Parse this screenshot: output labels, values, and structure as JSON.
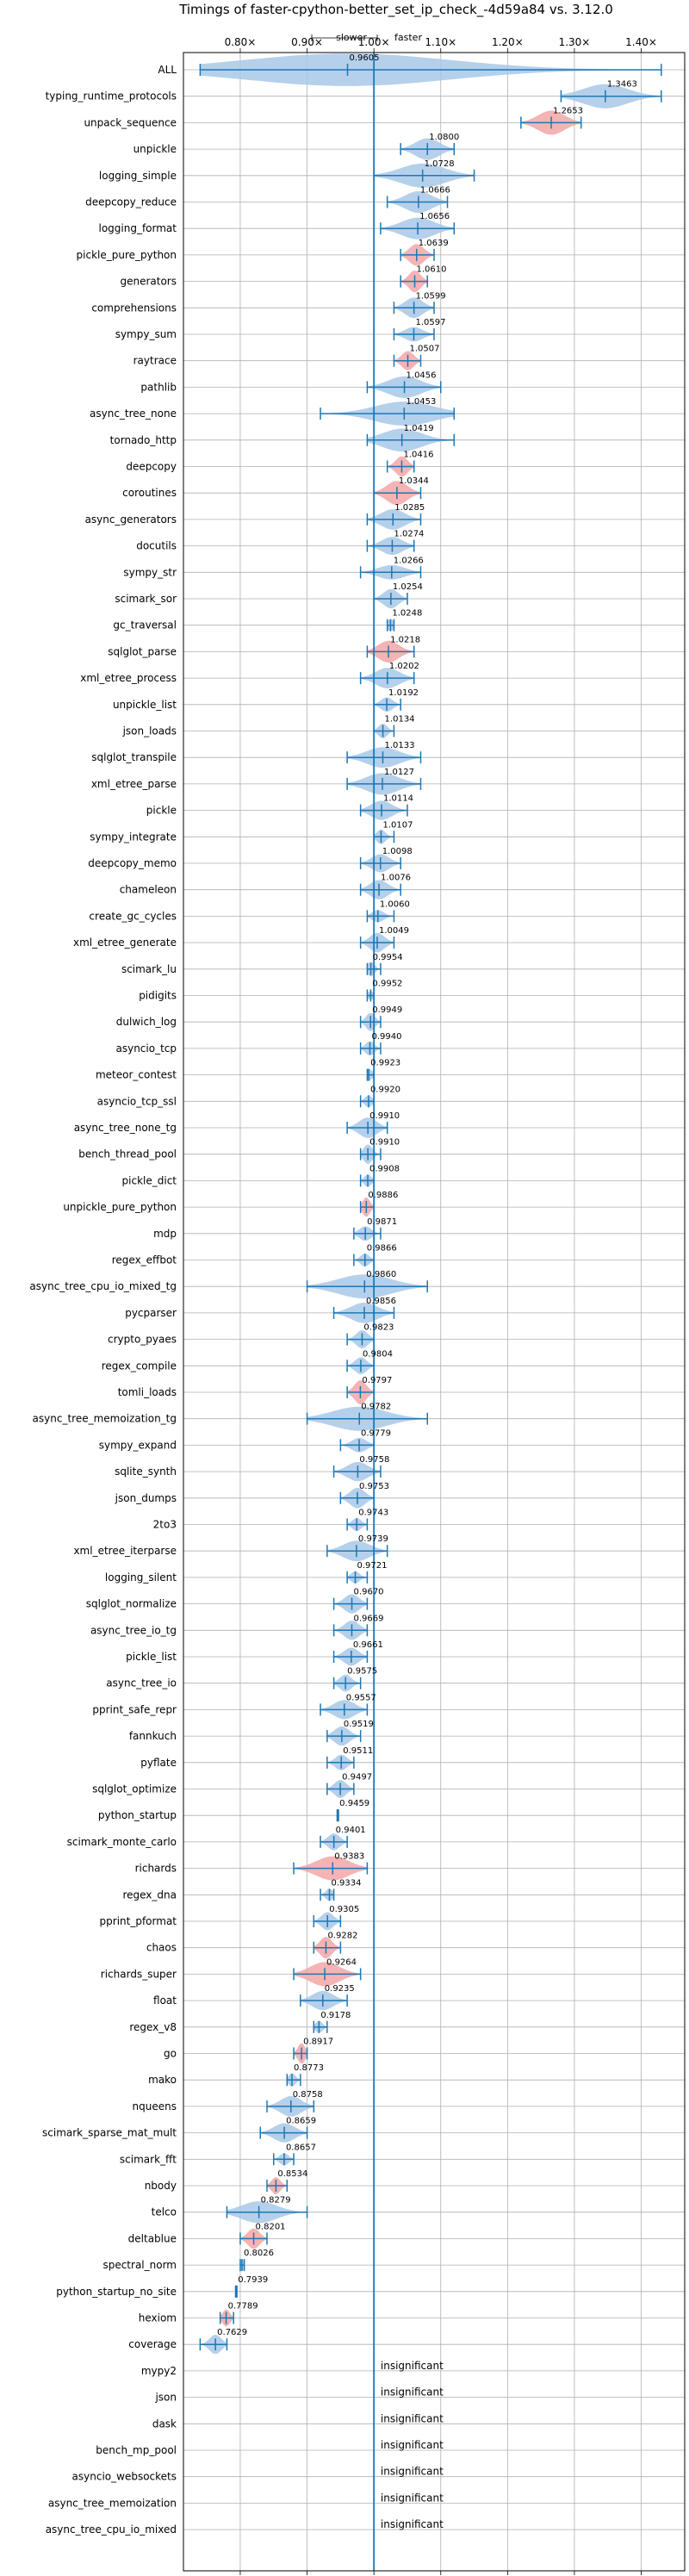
{
  "chart_data": {
    "type": "violin",
    "title": "Timings of faster-cpython-better_set_ip_check_-4d59a84 vs. 3.12.0",
    "xlabel": "",
    "ylabel": "",
    "xlim": [
      0.715,
      1.465
    ],
    "x_ticks": [
      "0.80×",
      "0.90×",
      "1.00×",
      "1.10×",
      "1.20×",
      "1.30×",
      "1.40×"
    ],
    "x_tick_values": [
      0.8,
      0.9,
      1.0,
      1.1,
      1.2,
      1.3,
      1.4
    ],
    "reference_x": 1.0,
    "grid": true,
    "annotation": {
      "slower": "slower",
      "faster": "faster"
    },
    "insignificant_label": "insignificant",
    "colors": {
      "normal": "#a8c8e8",
      "highlight": "#f4a6a6",
      "line": "#1f77b4",
      "grid": "#b0b0b0"
    },
    "benchmarks": [
      {
        "name": "ALL",
        "value": 0.9605,
        "lo": 0.74,
        "hi": 1.43,
        "w": 1.35,
        "hl": false
      },
      {
        "name": "typing_runtime_protocols",
        "value": 1.3463,
        "lo": 1.28,
        "hi": 1.43,
        "w": 1.0,
        "hl": false
      },
      {
        "name": "unpack_sequence",
        "value": 1.2653,
        "lo": 1.22,
        "hi": 1.31,
        "w": 1.0,
        "hl": true
      },
      {
        "name": "unpickle",
        "value": 1.08,
        "lo": 1.04,
        "hi": 1.12,
        "w": 0.9,
        "hl": false
      },
      {
        "name": "logging_simple",
        "value": 1.0728,
        "lo": 1.0,
        "hi": 1.15,
        "w": 1.0,
        "hl": false
      },
      {
        "name": "deepcopy_reduce",
        "value": 1.0666,
        "lo": 1.02,
        "hi": 1.11,
        "w": 0.9,
        "hl": false
      },
      {
        "name": "logging_format",
        "value": 1.0656,
        "lo": 1.01,
        "hi": 1.12,
        "w": 0.9,
        "hl": false
      },
      {
        "name": "pickle_pure_python",
        "value": 1.0639,
        "lo": 1.04,
        "hi": 1.09,
        "w": 0.9,
        "hl": true
      },
      {
        "name": "generators",
        "value": 1.061,
        "lo": 1.04,
        "hi": 1.08,
        "w": 0.9,
        "hl": true
      },
      {
        "name": "comprehensions",
        "value": 1.0599,
        "lo": 1.03,
        "hi": 1.09,
        "w": 0.85,
        "hl": false
      },
      {
        "name": "sympy_sum",
        "value": 1.0597,
        "lo": 1.03,
        "hi": 1.09,
        "w": 0.6,
        "hl": false
      },
      {
        "name": "raytrace",
        "value": 1.0507,
        "lo": 1.03,
        "hi": 1.07,
        "w": 0.8,
        "hl": true
      },
      {
        "name": "pathlib",
        "value": 1.0456,
        "lo": 0.99,
        "hi": 1.1,
        "w": 0.9,
        "hl": false
      },
      {
        "name": "async_tree_none",
        "value": 1.0453,
        "lo": 0.92,
        "hi": 1.12,
        "w": 1.0,
        "hl": false
      },
      {
        "name": "tornado_http",
        "value": 1.0419,
        "lo": 0.99,
        "hi": 1.12,
        "w": 0.95,
        "hl": false
      },
      {
        "name": "deepcopy",
        "value": 1.0416,
        "lo": 1.02,
        "hi": 1.06,
        "w": 0.85,
        "hl": true
      },
      {
        "name": "coroutines",
        "value": 1.0344,
        "lo": 1.0,
        "hi": 1.07,
        "w": 1.0,
        "hl": true
      },
      {
        "name": "async_generators",
        "value": 1.0285,
        "lo": 0.99,
        "hi": 1.07,
        "w": 0.85,
        "hl": false
      },
      {
        "name": "docutils",
        "value": 1.0274,
        "lo": 0.99,
        "hi": 1.06,
        "w": 0.75,
        "hl": false
      },
      {
        "name": "sympy_str",
        "value": 1.0266,
        "lo": 0.98,
        "hi": 1.07,
        "w": 0.6,
        "hl": false
      },
      {
        "name": "scimark_sor",
        "value": 1.0254,
        "lo": 1.0,
        "hi": 1.05,
        "w": 0.8,
        "hl": false
      },
      {
        "name": "gc_traversal",
        "value": 1.0248,
        "lo": 1.02,
        "hi": 1.03,
        "w": 0.5,
        "hl": false
      },
      {
        "name": "sqlglot_parse",
        "value": 1.0218,
        "lo": 0.99,
        "hi": 1.06,
        "w": 0.9,
        "hl": true
      },
      {
        "name": "xml_etree_process",
        "value": 1.0202,
        "lo": 0.98,
        "hi": 1.06,
        "w": 0.85,
        "hl": false
      },
      {
        "name": "unpickle_list",
        "value": 1.0192,
        "lo": 1.0,
        "hi": 1.04,
        "w": 0.6,
        "hl": false
      },
      {
        "name": "json_loads",
        "value": 1.0134,
        "lo": 1.0,
        "hi": 1.03,
        "w": 0.6,
        "hl": false
      },
      {
        "name": "sqlglot_transpile",
        "value": 1.0133,
        "lo": 0.96,
        "hi": 1.07,
        "w": 0.85,
        "hl": false
      },
      {
        "name": "xml_etree_parse",
        "value": 1.0127,
        "lo": 0.96,
        "hi": 1.07,
        "w": 0.9,
        "hl": false
      },
      {
        "name": "pickle",
        "value": 1.0114,
        "lo": 0.98,
        "hi": 1.05,
        "w": 0.8,
        "hl": false
      },
      {
        "name": "sympy_integrate",
        "value": 1.0107,
        "lo": 1.0,
        "hi": 1.03,
        "w": 0.6,
        "hl": false
      },
      {
        "name": "deepcopy_memo",
        "value": 1.0098,
        "lo": 0.98,
        "hi": 1.04,
        "w": 0.75,
        "hl": false
      },
      {
        "name": "chameleon",
        "value": 1.0076,
        "lo": 0.98,
        "hi": 1.04,
        "w": 0.8,
        "hl": false
      },
      {
        "name": "create_gc_cycles",
        "value": 1.006,
        "lo": 0.99,
        "hi": 1.03,
        "w": 0.5,
        "hl": false
      },
      {
        "name": "xml_etree_generate",
        "value": 1.0049,
        "lo": 0.98,
        "hi": 1.03,
        "w": 0.8,
        "hl": false
      },
      {
        "name": "scimark_lu",
        "value": 0.9954,
        "lo": 0.99,
        "hi": 1.01,
        "w": 0.6,
        "hl": false
      },
      {
        "name": "pidigits",
        "value": 0.9952,
        "lo": 0.99,
        "hi": 1.0,
        "w": 0.35,
        "hl": false
      },
      {
        "name": "dulwich_log",
        "value": 0.9949,
        "lo": 0.98,
        "hi": 1.01,
        "w": 0.75,
        "hl": false
      },
      {
        "name": "asyncio_tcp",
        "value": 0.994,
        "lo": 0.98,
        "hi": 1.01,
        "w": 0.6,
        "hl": false
      },
      {
        "name": "meteor_contest",
        "value": 0.9923,
        "lo": 0.99,
        "hi": 1.0,
        "w": 0.5,
        "hl": false
      },
      {
        "name": "asyncio_tcp_ssl",
        "value": 0.992,
        "lo": 0.98,
        "hi": 1.0,
        "w": 0.5,
        "hl": false
      },
      {
        "name": "async_tree_none_tg",
        "value": 0.991,
        "lo": 0.96,
        "hi": 1.02,
        "w": 0.85,
        "hl": false
      },
      {
        "name": "bench_thread_pool",
        "value": 0.991,
        "lo": 0.98,
        "hi": 1.01,
        "w": 0.8,
        "hl": false
      },
      {
        "name": "pickle_dict",
        "value": 0.9908,
        "lo": 0.98,
        "hi": 1.0,
        "w": 0.5,
        "hl": false
      },
      {
        "name": "unpickle_pure_python",
        "value": 0.9886,
        "lo": 0.98,
        "hi": 1.0,
        "w": 0.8,
        "hl": true
      },
      {
        "name": "mdp",
        "value": 0.9871,
        "lo": 0.97,
        "hi": 1.01,
        "w": 0.6,
        "hl": false
      },
      {
        "name": "regex_effbot",
        "value": 0.9866,
        "lo": 0.97,
        "hi": 1.0,
        "w": 0.55,
        "hl": false
      },
      {
        "name": "async_tree_cpu_io_mixed_tg",
        "value": 0.986,
        "lo": 0.9,
        "hi": 1.08,
        "w": 1.0,
        "hl": false
      },
      {
        "name": "pycparser",
        "value": 0.9856,
        "lo": 0.94,
        "hi": 1.03,
        "w": 0.85,
        "hl": false
      },
      {
        "name": "crypto_pyaes",
        "value": 0.9823,
        "lo": 0.96,
        "hi": 1.0,
        "w": 0.75,
        "hl": false
      },
      {
        "name": "regex_compile",
        "value": 0.9804,
        "lo": 0.96,
        "hi": 1.0,
        "w": 0.7,
        "hl": false
      },
      {
        "name": "tomli_loads",
        "value": 0.9797,
        "lo": 0.96,
        "hi": 1.0,
        "w": 1.0,
        "hl": true
      },
      {
        "name": "async_tree_memoization_tg",
        "value": 0.9782,
        "lo": 0.9,
        "hi": 1.08,
        "w": 1.0,
        "hl": false
      },
      {
        "name": "sympy_expand",
        "value": 0.9779,
        "lo": 0.95,
        "hi": 1.0,
        "w": 0.6,
        "hl": false
      },
      {
        "name": "sqlite_synth",
        "value": 0.9758,
        "lo": 0.94,
        "hi": 1.01,
        "w": 0.8,
        "hl": false
      },
      {
        "name": "json_dumps",
        "value": 0.9753,
        "lo": 0.95,
        "hi": 1.0,
        "w": 0.85,
        "hl": false
      },
      {
        "name": "2to3",
        "value": 0.9743,
        "lo": 0.96,
        "hi": 0.99,
        "w": 0.55,
        "hl": false
      },
      {
        "name": "xml_etree_iterparse",
        "value": 0.9739,
        "lo": 0.93,
        "hi": 1.02,
        "w": 0.85,
        "hl": false
      },
      {
        "name": "logging_silent",
        "value": 0.9721,
        "lo": 0.96,
        "hi": 0.99,
        "w": 0.5,
        "hl": false
      },
      {
        "name": "sqlglot_normalize",
        "value": 0.967,
        "lo": 0.94,
        "hi": 0.99,
        "w": 0.8,
        "hl": false
      },
      {
        "name": "async_tree_io_tg",
        "value": 0.9669,
        "lo": 0.94,
        "hi": 0.99,
        "w": 0.8,
        "hl": false
      },
      {
        "name": "pickle_list",
        "value": 0.9661,
        "lo": 0.94,
        "hi": 0.99,
        "w": 0.75,
        "hl": false
      },
      {
        "name": "async_tree_io",
        "value": 0.9575,
        "lo": 0.94,
        "hi": 0.98,
        "w": 0.7,
        "hl": false
      },
      {
        "name": "pprint_safe_repr",
        "value": 0.9557,
        "lo": 0.92,
        "hi": 0.99,
        "w": 0.8,
        "hl": false
      },
      {
        "name": "fannkuch",
        "value": 0.9519,
        "lo": 0.93,
        "hi": 0.98,
        "w": 0.8,
        "hl": false
      },
      {
        "name": "pyflate",
        "value": 0.9511,
        "lo": 0.93,
        "hi": 0.97,
        "w": 0.65,
        "hl": false
      },
      {
        "name": "sqlglot_optimize",
        "value": 0.9497,
        "lo": 0.93,
        "hi": 0.97,
        "w": 0.75,
        "hl": false
      },
      {
        "name": "python_startup",
        "value": 0.9459,
        "lo": 0.945,
        "hi": 0.947,
        "w": 0.25,
        "hl": false
      },
      {
        "name": "scimark_monte_carlo",
        "value": 0.9401,
        "lo": 0.92,
        "hi": 0.96,
        "w": 0.7,
        "hl": false
      },
      {
        "name": "richards",
        "value": 0.9383,
        "lo": 0.88,
        "hi": 0.99,
        "w": 1.0,
        "hl": true
      },
      {
        "name": "regex_dna",
        "value": 0.9334,
        "lo": 0.92,
        "hi": 0.94,
        "w": 0.5,
        "hl": false
      },
      {
        "name": "pprint_pformat",
        "value": 0.9305,
        "lo": 0.91,
        "hi": 0.95,
        "w": 0.75,
        "hl": false
      },
      {
        "name": "chaos",
        "value": 0.9282,
        "lo": 0.91,
        "hi": 0.95,
        "w": 0.9,
        "hl": true
      },
      {
        "name": "richards_super",
        "value": 0.9264,
        "lo": 0.88,
        "hi": 0.98,
        "w": 1.0,
        "hl": true
      },
      {
        "name": "float",
        "value": 0.9235,
        "lo": 0.89,
        "hi": 0.96,
        "w": 0.8,
        "hl": false
      },
      {
        "name": "regex_v8",
        "value": 0.9178,
        "lo": 0.91,
        "hi": 0.93,
        "w": 0.5,
        "hl": false
      },
      {
        "name": "go",
        "value": 0.8917,
        "lo": 0.88,
        "hi": 0.9,
        "w": 0.85,
        "hl": true
      },
      {
        "name": "mako",
        "value": 0.8773,
        "lo": 0.87,
        "hi": 0.89,
        "w": 0.55,
        "hl": false
      },
      {
        "name": "nqueens",
        "value": 0.8758,
        "lo": 0.84,
        "hi": 0.91,
        "w": 0.85,
        "hl": false
      },
      {
        "name": "scimark_sparse_mat_mult",
        "value": 0.8659,
        "lo": 0.83,
        "hi": 0.9,
        "w": 0.8,
        "hl": false
      },
      {
        "name": "scimark_fft",
        "value": 0.8657,
        "lo": 0.85,
        "hi": 0.88,
        "w": 0.5,
        "hl": false
      },
      {
        "name": "nbody",
        "value": 0.8534,
        "lo": 0.84,
        "hi": 0.87,
        "w": 0.7,
        "hl": true
      },
      {
        "name": "telco",
        "value": 0.8279,
        "lo": 0.78,
        "hi": 0.9,
        "w": 0.9,
        "hl": false
      },
      {
        "name": "deltablue",
        "value": 0.8201,
        "lo": 0.8,
        "hi": 0.84,
        "w": 0.85,
        "hl": true
      },
      {
        "name": "spectral_norm",
        "value": 0.8026,
        "lo": 0.8,
        "hi": 0.806,
        "w": 0.45,
        "hl": false
      },
      {
        "name": "python_startup_no_site",
        "value": 0.7939,
        "lo": 0.793,
        "hi": 0.795,
        "w": 0.25,
        "hl": false
      },
      {
        "name": "hexiom",
        "value": 0.7789,
        "lo": 0.77,
        "hi": 0.79,
        "w": 0.7,
        "hl": true
      },
      {
        "name": "coverage",
        "value": 0.7629,
        "lo": 0.74,
        "hi": 0.78,
        "w": 0.8,
        "hl": false
      },
      {
        "name": "mypy2",
        "value": null
      },
      {
        "name": "json",
        "value": null
      },
      {
        "name": "dask",
        "value": null
      },
      {
        "name": "bench_mp_pool",
        "value": null
      },
      {
        "name": "asyncio_websockets",
        "value": null
      },
      {
        "name": "async_tree_memoization",
        "value": null
      },
      {
        "name": "async_tree_cpu_io_mixed",
        "value": null
      }
    ]
  }
}
